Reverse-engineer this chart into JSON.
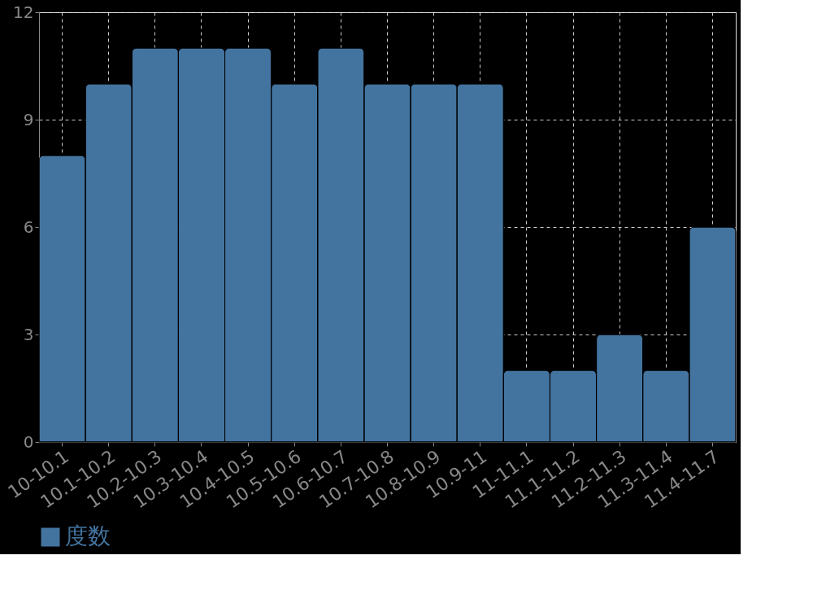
{
  "chart_data": {
    "type": "bar",
    "categories": [
      "10-10.1",
      "10.1-10.2",
      "10.2-10.3",
      "10.3-10.4",
      "10.4-10.5",
      "10.5-10.6",
      "10.6-10.7",
      "10.7-10.8",
      "10.8-10.9",
      "10.9-11",
      "11-11.1",
      "11.1-11.2",
      "11.2-11.3",
      "11.3-11.4",
      "11.4-11.7"
    ],
    "series": [
      {
        "name": "度数",
        "color": "#4374a0",
        "values": [
          8,
          10,
          11,
          11,
          11,
          10,
          11,
          10,
          10,
          10,
          2,
          2,
          3,
          2,
          6
        ]
      }
    ],
    "ylim": [
      0,
      12
    ],
    "yticks": [
      0,
      3,
      6,
      9,
      12
    ],
    "grid": true,
    "legend": "bottom"
  }
}
